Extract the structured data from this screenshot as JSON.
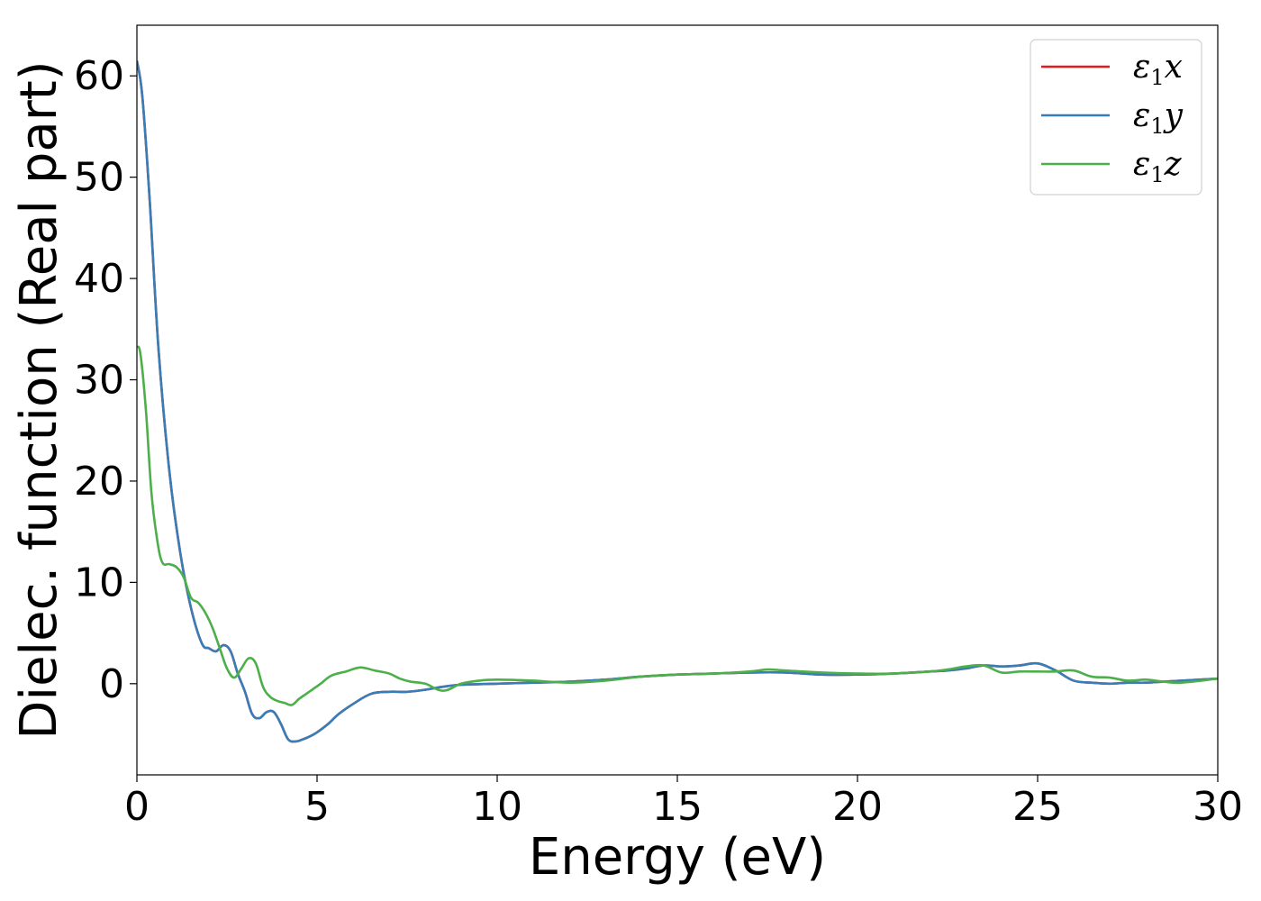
{
  "chart_data": {
    "type": "line",
    "xlabel": "Energy (eV)",
    "ylabel": "Dielec. function (Real part)",
    "xlim": [
      0,
      30
    ],
    "ylim": [
      -9,
      65
    ],
    "xticks": [
      0,
      5,
      10,
      15,
      20,
      25,
      30
    ],
    "yticks": [
      0,
      10,
      20,
      30,
      40,
      50,
      60
    ],
    "grid": false,
    "legend_position": "top-right",
    "series": [
      {
        "name": "ε1x",
        "legend": {
          "symbol": "ε",
          "sub": "1",
          "axis": "x"
        },
        "color": "#e41a1c",
        "x": [
          0,
          0.15,
          0.35,
          0.6,
          0.9,
          1.2,
          1.5,
          1.8,
          2.0,
          2.2,
          2.4,
          2.6,
          2.8,
          3.0,
          3.2,
          3.4,
          3.6,
          3.8,
          4.0,
          4.2,
          4.4,
          4.6,
          4.8,
          5.0,
          5.3,
          5.6,
          6.0,
          6.5,
          7.0,
          7.5,
          8.0,
          8.5,
          9.0,
          10.0,
          11.0,
          12.0,
          13.0,
          14.0,
          15.0,
          16.0,
          17.0,
          18.0,
          19.0,
          20.0,
          21.0,
          22.0,
          22.5,
          23.0,
          23.5,
          24.0,
          24.5,
          25.0,
          25.5,
          26.0,
          26.5,
          27.0,
          27.5,
          28.0,
          28.5,
          29.0,
          30.0
        ],
        "y": [
          61.5,
          58.0,
          48.0,
          33.0,
          21.0,
          13.0,
          7.5,
          4.0,
          3.5,
          3.2,
          3.8,
          3.2,
          1.0,
          -0.8,
          -3.0,
          -3.4,
          -2.8,
          -2.8,
          -4.0,
          -5.5,
          -5.7,
          -5.5,
          -5.2,
          -4.8,
          -4.0,
          -3.0,
          -2.0,
          -1.0,
          -0.8,
          -0.8,
          -0.6,
          -0.3,
          -0.1,
          0.0,
          0.1,
          0.2,
          0.4,
          0.7,
          0.9,
          1.0,
          1.1,
          1.1,
          0.9,
          0.9,
          1.0,
          1.2,
          1.3,
          1.5,
          1.8,
          1.7,
          1.8,
          2.0,
          1.3,
          0.3,
          0.1,
          0.0,
          0.1,
          0.1,
          0.2,
          0.3,
          0.5
        ]
      },
      {
        "name": "ε1y",
        "legend": {
          "symbol": "ε",
          "sub": "1",
          "axis": "y"
        },
        "color": "#377eb8",
        "x": [
          0,
          0.15,
          0.35,
          0.6,
          0.9,
          1.2,
          1.5,
          1.8,
          2.0,
          2.2,
          2.4,
          2.6,
          2.8,
          3.0,
          3.2,
          3.4,
          3.6,
          3.8,
          4.0,
          4.2,
          4.4,
          4.6,
          4.8,
          5.0,
          5.3,
          5.6,
          6.0,
          6.5,
          7.0,
          7.5,
          8.0,
          8.5,
          9.0,
          10.0,
          11.0,
          12.0,
          13.0,
          14.0,
          15.0,
          16.0,
          17.0,
          18.0,
          19.0,
          20.0,
          21.0,
          22.0,
          22.5,
          23.0,
          23.5,
          24.0,
          24.5,
          25.0,
          25.5,
          26.0,
          26.5,
          27.0,
          27.5,
          28.0,
          28.5,
          29.0,
          30.0
        ],
        "y": [
          61.5,
          58.0,
          48.0,
          33.0,
          21.0,
          13.0,
          7.5,
          4.0,
          3.5,
          3.2,
          3.8,
          3.2,
          1.0,
          -0.8,
          -3.0,
          -3.4,
          -2.8,
          -2.8,
          -4.0,
          -5.5,
          -5.7,
          -5.5,
          -5.2,
          -4.8,
          -4.0,
          -3.0,
          -2.0,
          -1.0,
          -0.8,
          -0.8,
          -0.6,
          -0.3,
          -0.1,
          0.0,
          0.1,
          0.2,
          0.4,
          0.7,
          0.9,
          1.0,
          1.1,
          1.1,
          0.9,
          0.9,
          1.0,
          1.2,
          1.3,
          1.5,
          1.8,
          1.7,
          1.8,
          2.0,
          1.3,
          0.3,
          0.1,
          0.0,
          0.1,
          0.1,
          0.2,
          0.3,
          0.5
        ]
      },
      {
        "name": "ε1z",
        "legend": {
          "symbol": "ε",
          "sub": "1",
          "axis": "z"
        },
        "color": "#4daf4a",
        "x": [
          0,
          0.1,
          0.25,
          0.4,
          0.55,
          0.7,
          0.9,
          1.1,
          1.3,
          1.5,
          1.7,
          1.9,
          2.1,
          2.3,
          2.5,
          2.7,
          2.9,
          3.1,
          3.3,
          3.5,
          3.7,
          3.9,
          4.1,
          4.3,
          4.5,
          4.7,
          4.9,
          5.1,
          5.4,
          5.8,
          6.2,
          6.6,
          7.0,
          7.3,
          7.6,
          8.0,
          8.5,
          9.0,
          9.5,
          10.0,
          11.0,
          12.0,
          13.0,
          14.0,
          15.0,
          16.0,
          17.0,
          17.5,
          18.0,
          19.0,
          20.0,
          21.0,
          22.0,
          22.5,
          23.0,
          23.5,
          24.0,
          24.5,
          25.0,
          25.5,
          26.0,
          26.5,
          27.0,
          27.5,
          28.0,
          28.5,
          29.0,
          30.0
        ],
        "y": [
          33.3,
          32.5,
          27.0,
          19.0,
          14.5,
          12.0,
          11.8,
          11.5,
          10.5,
          8.5,
          8.0,
          7.0,
          5.5,
          3.5,
          1.5,
          0.6,
          1.5,
          2.5,
          2.0,
          -0.3,
          -1.3,
          -1.7,
          -1.9,
          -2.1,
          -1.5,
          -1.0,
          -0.5,
          0.0,
          0.8,
          1.2,
          1.6,
          1.3,
          1.0,
          0.5,
          0.2,
          0.0,
          -0.7,
          0.0,
          0.3,
          0.4,
          0.3,
          0.1,
          0.3,
          0.7,
          0.9,
          1.0,
          1.2,
          1.4,
          1.3,
          1.1,
          1.0,
          1.0,
          1.2,
          1.4,
          1.7,
          1.8,
          1.1,
          1.2,
          1.2,
          1.2,
          1.3,
          0.7,
          0.6,
          0.3,
          0.4,
          0.2,
          0.1,
          0.5
        ]
      }
    ]
  }
}
